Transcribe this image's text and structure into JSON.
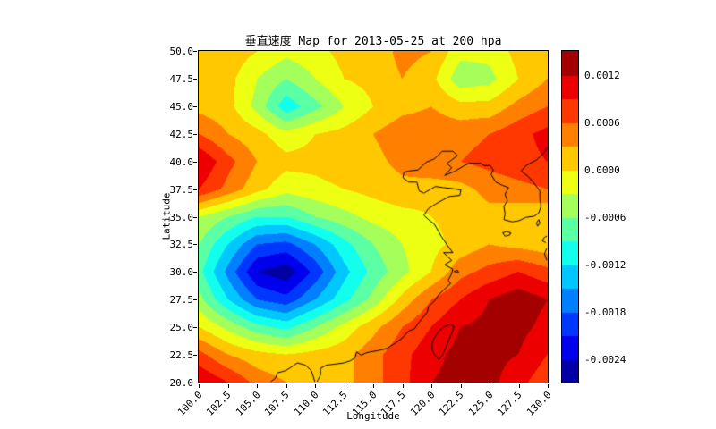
{
  "figure": {
    "title": "垂直速度 Map for 2013-05-25 at 200 hpa",
    "background": "#ffffff"
  },
  "axes": {
    "xlabel": "Longitude",
    "ylabel": "Latitude",
    "xlim": [
      100,
      130
    ],
    "ylim": [
      20,
      50
    ],
    "xtick_labels": [
      "100.0",
      "102.5",
      "105.0",
      "107.5",
      "110.0",
      "112.5",
      "115.0",
      "117.5",
      "120.0",
      "122.5",
      "125.0",
      "127.5",
      "130.0"
    ],
    "xtick_values": [
      100,
      102.5,
      105,
      107.5,
      110,
      112.5,
      115,
      117.5,
      120,
      122.5,
      125,
      127.5,
      130
    ],
    "ytick_labels": [
      "20.0",
      "22.5",
      "25.0",
      "27.5",
      "30.0",
      "32.5",
      "35.0",
      "37.5",
      "40.0",
      "42.5",
      "45.0",
      "47.5",
      "50.0"
    ],
    "ytick_values": [
      20,
      22.5,
      25,
      27.5,
      30,
      32.5,
      35,
      37.5,
      40,
      42.5,
      45,
      47.5,
      50
    ]
  },
  "colorbar": {
    "tick_labels": [
      "0.0012",
      "0.0006",
      "0.0000",
      "-0.0006",
      "-0.0012",
      "-0.0018",
      "-0.0024"
    ],
    "tick_values": [
      0.0012,
      0.0006,
      0,
      -0.0006,
      -0.0012,
      -0.0018,
      -0.0024
    ],
    "vmin": -0.0027,
    "vmax": 0.0015,
    "colormap": "jet"
  },
  "chart_data": {
    "type": "heatmap",
    "style": "filled-contour",
    "title": "垂直速度 Map for 2013-05-25 at 200 hpa",
    "xlabel": "Longitude",
    "ylabel": "Latitude",
    "xlim": [
      100,
      130
    ],
    "ylim": [
      20,
      50
    ],
    "colormap": "jet",
    "vmin": -0.0027,
    "vmax": 0.0015,
    "level_step": 0.0003,
    "x": [
      100,
      102.5,
      105,
      107.5,
      110,
      112.5,
      115,
      117.5,
      120,
      122.5,
      125,
      127.5,
      130
    ],
    "y": [
      20,
      22.5,
      25,
      27.5,
      30,
      32.5,
      35,
      37.5,
      40,
      42.5,
      45,
      47.5,
      50
    ],
    "values": [
      [
        0.0012,
        0.0009,
        0.0005,
        0.0003,
        0.0002,
        0.0002,
        0.0005,
        0.0008,
        0.0012,
        0.0013,
        0.0013,
        0.001,
        0.0007
      ],
      [
        0.0007,
        0.0003,
        0.0001,
        0.0,
        0.0001,
        0.0002,
        0.0005,
        0.0008,
        0.0011,
        0.0013,
        0.0013,
        0.0012,
        0.0009
      ],
      [
        0.0,
        -0.0004,
        -0.0008,
        -0.001,
        -0.0006,
        -0.0002,
        0.0002,
        0.0006,
        0.0009,
        0.0012,
        0.0013,
        0.0013,
        0.0011
      ],
      [
        -0.0005,
        -0.0012,
        -0.0018,
        -0.002,
        -0.0015,
        -0.001,
        -0.0005,
        0.0001,
        0.0006,
        0.0009,
        0.0012,
        0.0014,
        0.0012
      ],
      [
        -0.0008,
        -0.0016,
        -0.0024,
        -0.0026,
        -0.002,
        -0.0013,
        -0.0008,
        -0.0004,
        0.0,
        0.0005,
        0.0007,
        0.0009,
        0.0007
      ],
      [
        -0.0006,
        -0.0012,
        -0.0018,
        -0.0019,
        -0.0015,
        -0.001,
        -0.0006,
        -0.0003,
        -0.0001,
        0.0001,
        0.0003,
        0.0002,
        0.0001
      ],
      [
        -0.0003,
        -0.0006,
        -0.0009,
        -0.0009,
        -0.0006,
        -0.0004,
        -0.0002,
        -0.0001,
        0.0,
        0.0001,
        0.0002,
        0.0001,
        0.0
      ],
      [
        0.0009,
        0.0005,
        0.0001,
        -0.0002,
        -0.0001,
        0.0,
        0.0001,
        0.0002,
        0.0001,
        0.0002,
        0.0004,
        0.0005,
        0.0006
      ],
      [
        0.0012,
        0.0007,
        0.0003,
        0.0001,
        0.0001,
        0.0002,
        0.0002,
        0.0004,
        0.0006,
        0.0006,
        0.0007,
        0.0008,
        0.0009
      ],
      [
        0.0006,
        0.0003,
        0.0001,
        -0.0002,
        0.0,
        0.0001,
        0.0003,
        0.0005,
        0.0005,
        0.0005,
        0.0006,
        0.0008,
        0.001
      ],
      [
        0.0002,
        0.0001,
        -0.0004,
        -0.0011,
        -0.0007,
        -0.0003,
        0.0,
        0.0002,
        0.0003,
        0.0001,
        0.0001,
        0.0004,
        0.0006
      ],
      [
        0.0002,
        0.0001,
        -0.0003,
        -0.0006,
        -0.0003,
        0.0,
        0.0001,
        0.0003,
        0.0001,
        -0.0005,
        -0.0004,
        0.0,
        0.0003
      ],
      [
        0.0002,
        0.0002,
        0.0,
        -0.0002,
        -0.0001,
        0.0001,
        0.0001,
        0.0004,
        0.0003,
        -0.0002,
        -0.0002,
        0.0001,
        0.0002
      ]
    ],
    "coastline": [
      [
        [
          124.3,
          39.8
        ],
        [
          123.3,
          39.8
        ],
        [
          122.9,
          39.6
        ],
        [
          122.1,
          39.1
        ],
        [
          121.2,
          38.7
        ],
        [
          121.8,
          39.4
        ],
        [
          121.4,
          39.8
        ],
        [
          122.3,
          40.5
        ],
        [
          121.9,
          40.9
        ],
        [
          121.0,
          40.9
        ],
        [
          120.3,
          40.2
        ],
        [
          119.6,
          39.9
        ],
        [
          118.9,
          39.2
        ],
        [
          118.1,
          39.1
        ],
        [
          117.7,
          39.0
        ],
        [
          117.6,
          38.5
        ],
        [
          118.1,
          38.1
        ],
        [
          118.8,
          38.1
        ],
        [
          119.0,
          37.3
        ],
        [
          119.4,
          37.1
        ],
        [
          120.4,
          37.7
        ],
        [
          121.1,
          37.6
        ],
        [
          121.9,
          37.5
        ],
        [
          122.6,
          37.4
        ],
        [
          122.5,
          36.9
        ],
        [
          121.6,
          36.8
        ],
        [
          120.9,
          36.4
        ],
        [
          120.4,
          36.1
        ],
        [
          119.8,
          35.7
        ],
        [
          119.4,
          35.1
        ],
        [
          119.8,
          34.7
        ],
        [
          120.3,
          34.3
        ],
        [
          120.9,
          33.2
        ],
        [
          121.4,
          32.4
        ],
        [
          121.9,
          31.7
        ],
        [
          121.1,
          31.7
        ],
        [
          121.8,
          31.0
        ],
        [
          121.2,
          30.6
        ],
        [
          121.9,
          30.2
        ],
        [
          121.8,
          29.8
        ],
        [
          121.5,
          29.2
        ],
        [
          121.7,
          28.9
        ],
        [
          121.1,
          28.3
        ],
        [
          120.7,
          27.9
        ],
        [
          120.3,
          27.3
        ],
        [
          119.8,
          26.8
        ],
        [
          119.7,
          26.3
        ],
        [
          119.0,
          25.4
        ],
        [
          118.6,
          24.8
        ],
        [
          118.1,
          24.6
        ],
        [
          117.5,
          23.9
        ],
        [
          116.8,
          23.4
        ],
        [
          116.2,
          23.0
        ],
        [
          115.4,
          22.8
        ],
        [
          114.8,
          22.7
        ],
        [
          114.4,
          22.6
        ],
        [
          114.0,
          22.4
        ],
        [
          113.6,
          22.7
        ],
        [
          113.5,
          22.2
        ],
        [
          113.1,
          21.9
        ],
        [
          112.5,
          21.7
        ],
        [
          111.8,
          21.6
        ],
        [
          111.0,
          21.5
        ],
        [
          110.5,
          21.2
        ],
        [
          110.5,
          20.6
        ],
        [
          110.3,
          20.2
        ],
        [
          110.2,
          20.0
        ]
      ],
      [
        [
          110.0,
          20.0
        ],
        [
          109.9,
          20.4
        ],
        [
          109.7,
          21.0
        ],
        [
          109.2,
          21.5
        ],
        [
          108.5,
          21.7
        ],
        [
          108.1,
          21.4
        ],
        [
          107.5,
          21.0
        ],
        [
          106.8,
          20.8
        ],
        [
          106.6,
          20.3
        ],
        [
          106.2,
          20.0
        ]
      ],
      [
        [
          124.3,
          39.8
        ],
        [
          124.6,
          39.6
        ],
        [
          125.1,
          39.6
        ],
        [
          125.4,
          39.2
        ],
        [
          125.2,
          38.8
        ],
        [
          125.6,
          38.1
        ],
        [
          126.2,
          37.8
        ],
        [
          126.7,
          37.6
        ],
        [
          126.4,
          37.0
        ],
        [
          126.6,
          36.4
        ],
        [
          126.3,
          35.9
        ],
        [
          126.4,
          35.2
        ],
        [
          126.3,
          34.7
        ],
        [
          127.0,
          34.5
        ],
        [
          127.6,
          34.6
        ],
        [
          128.2,
          34.9
        ],
        [
          128.9,
          35.0
        ],
        [
          129.3,
          35.3
        ],
        [
          129.5,
          35.9
        ],
        [
          129.4,
          36.6
        ],
        [
          129.4,
          37.3
        ],
        [
          128.9,
          38.0
        ],
        [
          128.4,
          38.6
        ],
        [
          127.8,
          39.1
        ],
        [
          128.2,
          39.6
        ],
        [
          129.1,
          40.1
        ],
        [
          129.8,
          40.8
        ],
        [
          130.0,
          41.2
        ]
      ],
      [
        [
          126.2,
          33.5
        ],
        [
          126.5,
          33.6
        ],
        [
          126.9,
          33.5
        ],
        [
          126.8,
          33.3
        ],
        [
          126.4,
          33.2
        ],
        [
          126.2,
          33.5
        ]
      ],
      [
        [
          120.7,
          22.0
        ],
        [
          120.2,
          22.6
        ],
        [
          120.1,
          23.1
        ],
        [
          120.2,
          23.8
        ],
        [
          120.7,
          24.6
        ],
        [
          121.2,
          25.0
        ],
        [
          121.7,
          25.2
        ],
        [
          122.0,
          25.0
        ],
        [
          121.8,
          24.4
        ],
        [
          121.4,
          23.4
        ],
        [
          121.0,
          22.4
        ],
        [
          120.7,
          22.0
        ]
      ],
      [
        [
          130.0,
          31.0
        ],
        [
          129.8,
          31.6
        ],
        [
          130.0,
          32.1
        ]
      ],
      [
        [
          129.9,
          32.6
        ],
        [
          129.6,
          32.8
        ],
        [
          129.8,
          33.1
        ],
        [
          130.0,
          33.2
        ]
      ],
      [
        [
          129.2,
          34.1
        ],
        [
          129.4,
          34.4
        ],
        [
          129.3,
          34.7
        ],
        [
          129.1,
          34.4
        ],
        [
          129.2,
          34.1
        ]
      ],
      [
        [
          122.0,
          30.0
        ],
        [
          122.3,
          30.1
        ],
        [
          122.4,
          29.9
        ],
        [
          122.1,
          29.9
        ],
        [
          122.0,
          30.0
        ]
      ]
    ]
  }
}
